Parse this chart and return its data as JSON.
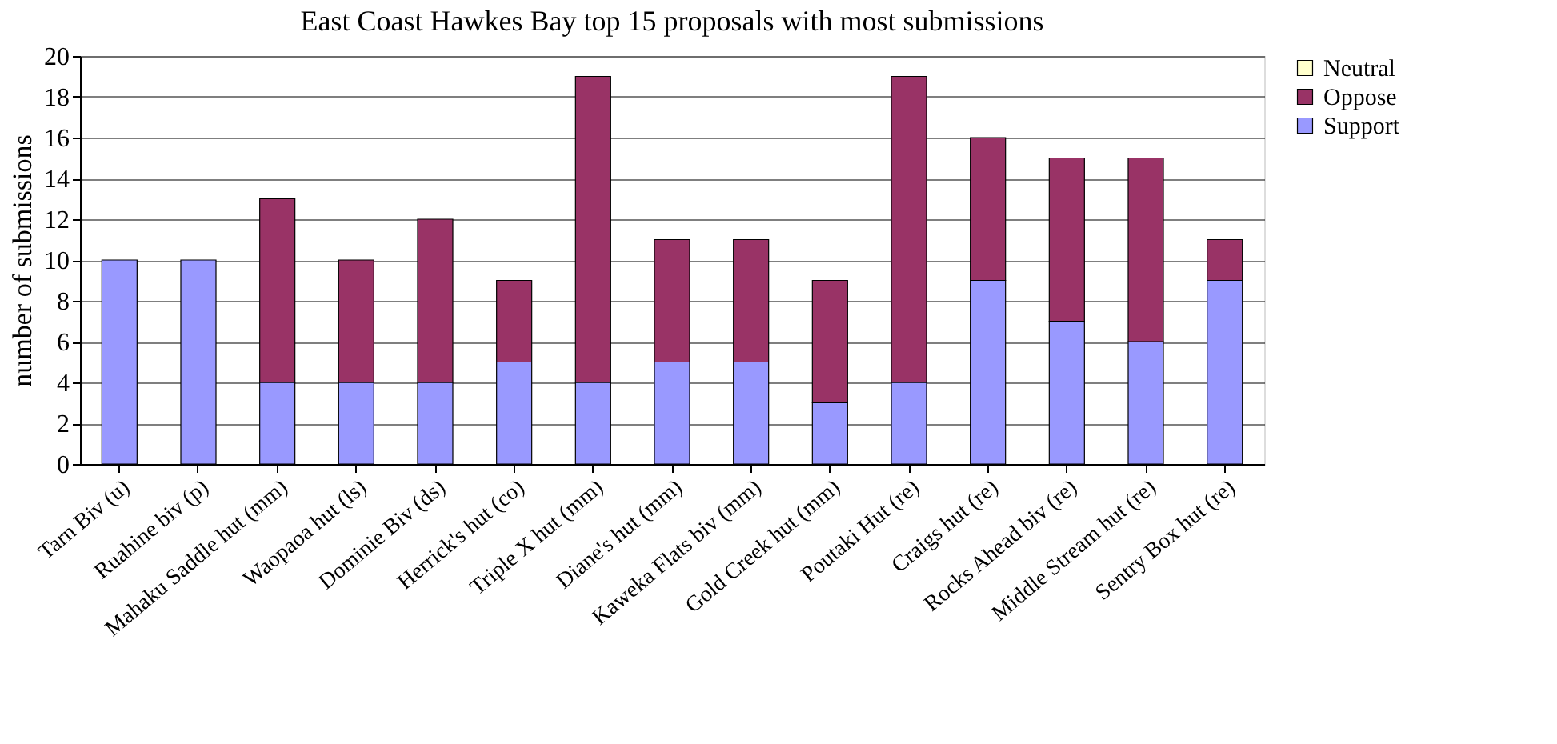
{
  "chart_data": {
    "type": "bar",
    "stacked": true,
    "title": "East Coast Hawkes Bay top 15 proposals with most submissions",
    "ylabel": "number of submissions",
    "categories": [
      "Tarn Biv (u)",
      "Ruahine biv (p)",
      "Mahaku Saddle hut (mm)",
      "Waopaoa hut (ls)",
      "Dominie Biv (ds)",
      "Herrick's hut (co)",
      "Triple X hut (mm)",
      "Diane's hut (mm)",
      "Kaweka Flats biv (mm)",
      "Gold Creek hut (mm)",
      "Poutaki Hut (re)",
      "Craigs hut (re)",
      "Rocks Ahead biv (re)",
      "Middle Stream hut (re)",
      "Sentry Box hut (re)"
    ],
    "series": [
      {
        "name": "Support",
        "color": "#9999ff",
        "values": [
          10,
          10,
          4,
          4,
          4,
          5,
          4,
          5,
          5,
          3,
          4,
          9,
          7,
          6,
          9
        ]
      },
      {
        "name": "Oppose",
        "color": "#993366",
        "values": [
          0,
          0,
          9,
          6,
          8,
          4,
          15,
          6,
          6,
          6,
          15,
          7,
          8,
          9,
          2
        ]
      },
      {
        "name": "Neutral",
        "color": "#ffffcc",
        "values": [
          0,
          0,
          0,
          0,
          0,
          0,
          0,
          0,
          0,
          0,
          0,
          0,
          0,
          0,
          0
        ]
      }
    ],
    "ylim": [
      0,
      20
    ],
    "yticks": [
      0,
      2,
      4,
      6,
      8,
      10,
      12,
      14,
      16,
      18,
      20
    ],
    "grid": "y",
    "legend": "right"
  }
}
